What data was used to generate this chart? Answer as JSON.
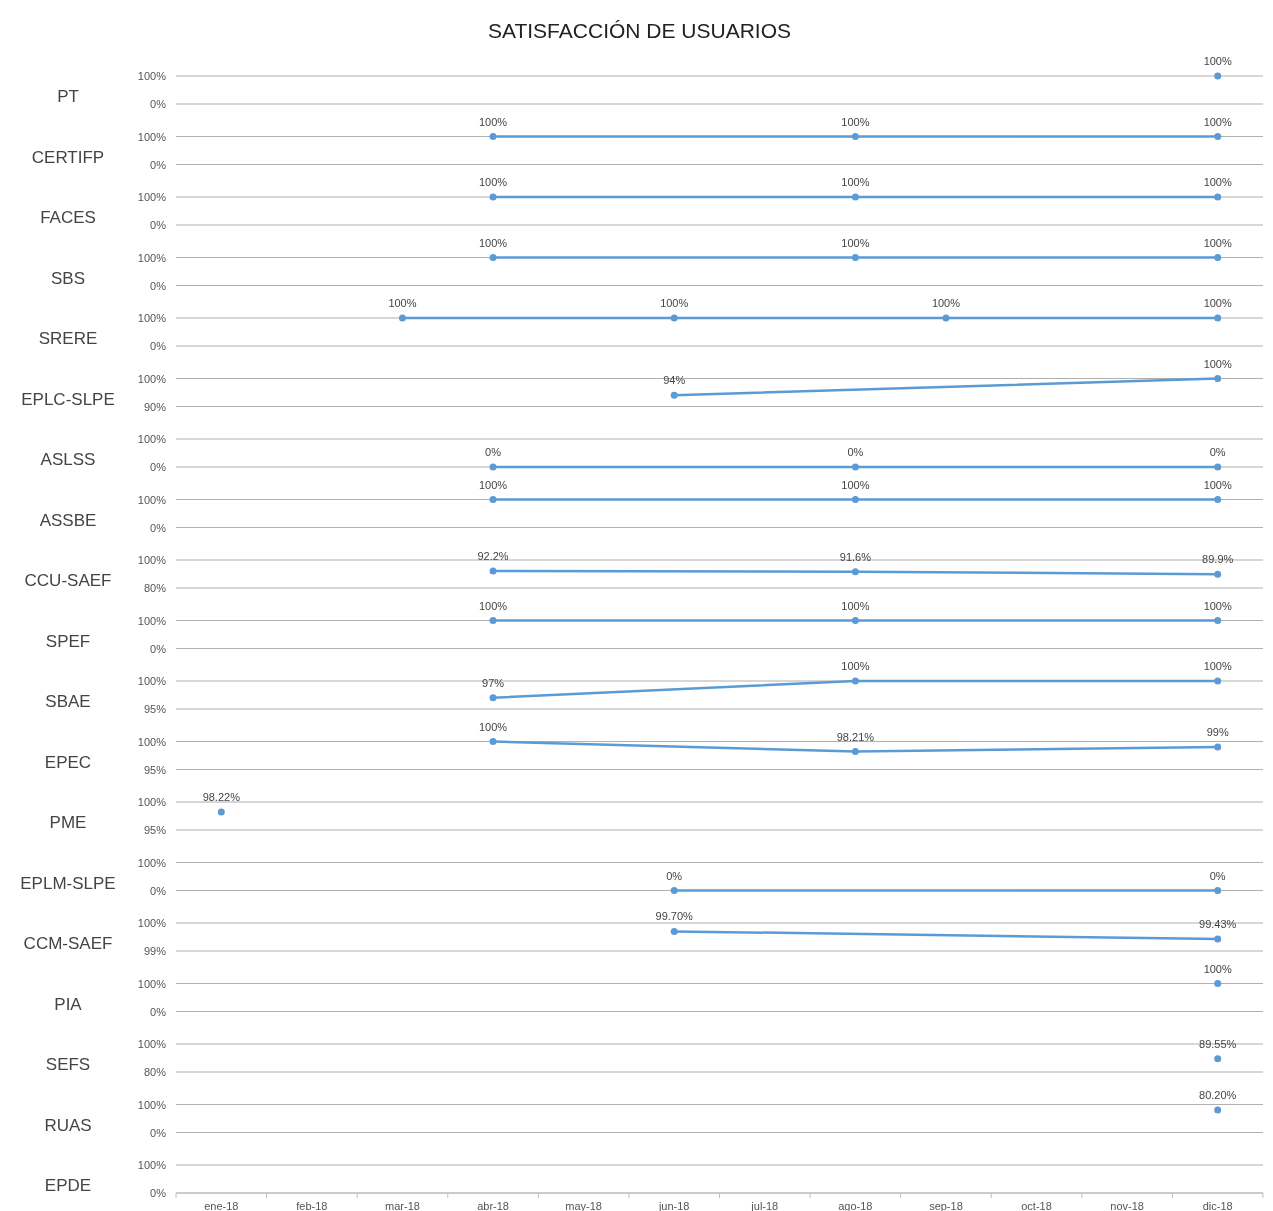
{
  "chart_data": [
    {
      "type": "line",
      "title": "SATISFACCIÓN DE USUARIOS",
      "ylabel": "PT",
      "categories": [
        null,
        null,
        null,
        null,
        null,
        null,
        null,
        null,
        null,
        null,
        null,
        null
      ],
      "values": [
        null,
        null,
        null,
        null,
        null,
        null,
        null,
        null,
        null,
        null,
        null,
        100
      ],
      "value_labels": [
        null,
        null,
        null,
        null,
        null,
        null,
        null,
        null,
        null,
        null,
        null,
        "100%"
      ],
      "color": "#5b9bd5",
      "ylim": [
        0,
        100
      ],
      "yticks": [
        {
          "value": 0,
          "label": "0%"
        },
        {
          "value": 100,
          "label": "100%"
        }
      ],
      "grid": "y",
      "marker": "circle",
      "tick_labels": "y"
    },
    {
      "type": "line",
      "ylabel": "CERTIFP",
      "categories": [
        null,
        null,
        null,
        null,
        null,
        null,
        null,
        null,
        null,
        null,
        null,
        null
      ],
      "values": [
        null,
        null,
        null,
        100,
        null,
        null,
        null,
        100,
        null,
        null,
        null,
        100
      ],
      "value_labels": [
        null,
        null,
        null,
        "100%",
        null,
        null,
        null,
        "100%",
        null,
        null,
        null,
        "100%"
      ],
      "color": "#5b9bd5",
      "ylim": [
        0,
        100
      ],
      "yticks": [
        {
          "value": 0,
          "label": "0%"
        },
        {
          "value": 100,
          "label": "100%"
        }
      ],
      "grid": "y",
      "marker": "circle",
      "tick_labels": "y"
    },
    {
      "type": "line",
      "ylabel": "FACES",
      "categories": [
        null,
        null,
        null,
        null,
        null,
        null,
        null,
        null,
        null,
        null,
        null,
        null
      ],
      "values": [
        null,
        null,
        null,
        100,
        null,
        null,
        null,
        100,
        null,
        null,
        null,
        100
      ],
      "value_labels": [
        null,
        null,
        null,
        "100%",
        null,
        null,
        null,
        "100%",
        null,
        null,
        null,
        "100%"
      ],
      "color": "#5b9bd5",
      "ylim": [
        0,
        100
      ],
      "yticks": [
        {
          "value": 0,
          "label": "0%"
        },
        {
          "value": 100,
          "label": "100%"
        }
      ],
      "grid": "y",
      "marker": "circle",
      "tick_labels": "y"
    },
    {
      "type": "line",
      "ylabel": "SBS",
      "categories": [
        null,
        null,
        null,
        null,
        null,
        null,
        null,
        null,
        null,
        null,
        null,
        null
      ],
      "values": [
        null,
        null,
        null,
        100,
        null,
        null,
        null,
        100,
        null,
        null,
        null,
        100
      ],
      "value_labels": [
        null,
        null,
        null,
        "100%",
        null,
        null,
        null,
        "100%",
        null,
        null,
        null,
        "100%"
      ],
      "color": "#5b9bd5",
      "ylim": [
        0,
        100
      ],
      "yticks": [
        {
          "value": 0,
          "label": "0%"
        },
        {
          "value": 100,
          "label": "100%"
        }
      ],
      "grid": "y",
      "marker": "circle",
      "tick_labels": "y"
    },
    {
      "type": "line",
      "ylabel": "SRERE",
      "categories": [
        null,
        null,
        null,
        null,
        null,
        null,
        null,
        null,
        null,
        null,
        null,
        null
      ],
      "values": [
        null,
        null,
        100,
        null,
        null,
        100,
        null,
        null,
        100,
        null,
        null,
        100
      ],
      "value_labels": [
        null,
        null,
        "100%",
        null,
        null,
        "100%",
        null,
        null,
        "100%",
        null,
        null,
        "100%"
      ],
      "color": "#5b9bd5",
      "ylim": [
        0,
        100
      ],
      "yticks": [
        {
          "value": 0,
          "label": "0%"
        },
        {
          "value": 100,
          "label": "100%"
        }
      ],
      "grid": "y",
      "marker": "circle",
      "tick_labels": "y"
    },
    {
      "type": "line",
      "ylabel": "EPLC-SLPE",
      "categories": [
        null,
        null,
        null,
        null,
        null,
        null,
        null,
        null,
        null,
        null,
        null,
        null
      ],
      "values": [
        null,
        null,
        null,
        null,
        null,
        94,
        null,
        null,
        null,
        null,
        null,
        100
      ],
      "value_labels": [
        null,
        null,
        null,
        null,
        null,
        "94%",
        null,
        null,
        null,
        null,
        null,
        "100%"
      ],
      "color": "#5b9bd5",
      "ylim": [
        90,
        100
      ],
      "yticks": [
        {
          "value": 90,
          "label": "90%"
        },
        {
          "value": 100,
          "label": "100%"
        }
      ],
      "grid": "y",
      "marker": "circle",
      "tick_labels": "y"
    },
    {
      "type": "line",
      "ylabel": "ASLSS",
      "categories": [
        null,
        null,
        null,
        null,
        null,
        null,
        null,
        null,
        null,
        null,
        null,
        null
      ],
      "values": [
        null,
        null,
        null,
        0,
        null,
        null,
        null,
        0,
        null,
        null,
        null,
        0
      ],
      "value_labels": [
        null,
        null,
        null,
        "0%",
        null,
        null,
        null,
        "0%",
        null,
        null,
        null,
        "0%"
      ],
      "color": "#5b9bd5",
      "ylim": [
        0,
        100
      ],
      "yticks": [
        {
          "value": 0,
          "label": "0%"
        },
        {
          "value": 100,
          "label": "100%"
        }
      ],
      "grid": "y",
      "marker": "circle",
      "tick_labels": "y"
    },
    {
      "type": "line",
      "ylabel": "ASSBE",
      "categories": [
        null,
        null,
        null,
        null,
        null,
        null,
        null,
        null,
        null,
        null,
        null,
        null
      ],
      "values": [
        null,
        null,
        null,
        100,
        null,
        null,
        null,
        100,
        null,
        null,
        null,
        100
      ],
      "value_labels": [
        null,
        null,
        null,
        "100%",
        null,
        null,
        null,
        "100%",
        null,
        null,
        null,
        "100%"
      ],
      "color": "#5b9bd5",
      "ylim": [
        0,
        100
      ],
      "yticks": [
        {
          "value": 0,
          "label": "0%"
        },
        {
          "value": 100,
          "label": "100%"
        }
      ],
      "grid": "y",
      "marker": "circle",
      "tick_labels": "y"
    },
    {
      "type": "line",
      "ylabel": "CCU-SAEF",
      "categories": [
        null,
        null,
        null,
        null,
        null,
        null,
        null,
        null,
        null,
        null,
        null,
        null
      ],
      "values": [
        null,
        null,
        null,
        92.2,
        null,
        null,
        null,
        91.6,
        null,
        null,
        null,
        89.9
      ],
      "value_labels": [
        null,
        null,
        null,
        "92.2%",
        null,
        null,
        null,
        "91.6%",
        null,
        null,
        null,
        "89.9%"
      ],
      "color": "#5b9bd5",
      "ylim": [
        80,
        100
      ],
      "yticks": [
        {
          "value": 80,
          "label": "80%"
        },
        {
          "value": 100,
          "label": "100%"
        }
      ],
      "grid": "y",
      "marker": "circle",
      "tick_labels": "y"
    },
    {
      "type": "line",
      "ylabel": "SPEF",
      "categories": [
        null,
        null,
        null,
        null,
        null,
        null,
        null,
        null,
        null,
        null,
        null,
        null
      ],
      "values": [
        null,
        null,
        null,
        100,
        null,
        null,
        null,
        100,
        null,
        null,
        null,
        100
      ],
      "value_labels": [
        null,
        null,
        null,
        "100%",
        null,
        null,
        null,
        "100%",
        null,
        null,
        null,
        "100%"
      ],
      "color": "#5b9bd5",
      "ylim": [
        0,
        100
      ],
      "yticks": [
        {
          "value": 0,
          "label": "0%"
        },
        {
          "value": 100,
          "label": "100%"
        }
      ],
      "grid": "y",
      "marker": "circle",
      "tick_labels": "y"
    },
    {
      "type": "line",
      "ylabel": "SBAE",
      "categories": [
        null,
        null,
        null,
        null,
        null,
        null,
        null,
        null,
        null,
        null,
        null,
        null
      ],
      "values": [
        null,
        null,
        null,
        97,
        null,
        null,
        null,
        100,
        null,
        null,
        null,
        100
      ],
      "value_labels": [
        null,
        null,
        null,
        "97%",
        null,
        null,
        null,
        "100%",
        null,
        null,
        null,
        "100%"
      ],
      "color": "#5b9bd5",
      "ylim": [
        95,
        100
      ],
      "yticks": [
        {
          "value": 95,
          "label": "95%"
        },
        {
          "value": 100,
          "label": "100%"
        }
      ],
      "grid": "y",
      "marker": "circle",
      "tick_labels": "y"
    },
    {
      "type": "line",
      "ylabel": "EPEC",
      "categories": [
        null,
        null,
        null,
        null,
        null,
        null,
        null,
        null,
        null,
        null,
        null,
        null
      ],
      "values": [
        null,
        null,
        null,
        100,
        null,
        null,
        null,
        98.21,
        null,
        null,
        null,
        99
      ],
      "value_labels": [
        null,
        null,
        null,
        "100%",
        null,
        null,
        null,
        "98.21%",
        null,
        null,
        null,
        "99%"
      ],
      "color": "#5b9bd5",
      "ylim": [
        95,
        100
      ],
      "yticks": [
        {
          "value": 95,
          "label": "95%"
        },
        {
          "value": 100,
          "label": "100%"
        }
      ],
      "grid": "y",
      "marker": "circle",
      "tick_labels": "y"
    },
    {
      "type": "line",
      "ylabel": "PME",
      "categories": [
        null,
        null,
        null,
        null,
        null,
        null,
        null,
        null,
        null,
        null,
        null,
        null
      ],
      "values": [
        98.22,
        null,
        null,
        null,
        null,
        null,
        null,
        null,
        null,
        null,
        null,
        null
      ],
      "value_labels": [
        "98.22%",
        null,
        null,
        null,
        null,
        null,
        null,
        null,
        null,
        null,
        null,
        null
      ],
      "color": "#5b9bd5",
      "ylim": [
        95,
        100
      ],
      "yticks": [
        {
          "value": 95,
          "label": "95%"
        },
        {
          "value": 100,
          "label": "100%"
        }
      ],
      "grid": "y",
      "marker": "circle",
      "tick_labels": "y"
    },
    {
      "type": "line",
      "ylabel": "EPLM-SLPE",
      "categories": [
        null,
        null,
        null,
        null,
        null,
        null,
        null,
        null,
        null,
        null,
        null,
        null
      ],
      "values": [
        null,
        null,
        null,
        null,
        null,
        0,
        null,
        null,
        null,
        null,
        null,
        0
      ],
      "value_labels": [
        null,
        null,
        null,
        null,
        null,
        "0%",
        null,
        null,
        null,
        null,
        null,
        "0%"
      ],
      "color": "#5b9bd5",
      "ylim": [
        0,
        100
      ],
      "yticks": [
        {
          "value": 0,
          "label": "0%"
        },
        {
          "value": 100,
          "label": "100%"
        }
      ],
      "grid": "y",
      "marker": "circle",
      "tick_labels": "y"
    },
    {
      "type": "line",
      "ylabel": "CCM-SAEF",
      "categories": [
        null,
        null,
        null,
        null,
        null,
        null,
        null,
        null,
        null,
        null,
        null,
        null
      ],
      "values": [
        null,
        null,
        null,
        null,
        null,
        99.7,
        null,
        null,
        null,
        null,
        null,
        99.43
      ],
      "value_labels": [
        null,
        null,
        null,
        null,
        null,
        "99.70%",
        null,
        null,
        null,
        null,
        null,
        "99.43%"
      ],
      "color": "#5b9bd5",
      "ylim": [
        99,
        100
      ],
      "yticks": [
        {
          "value": 99,
          "label": "99%"
        },
        {
          "value": 100,
          "label": "100%"
        }
      ],
      "grid": "y",
      "marker": "circle",
      "tick_labels": "y"
    },
    {
      "type": "line",
      "ylabel": "PIA",
      "categories": [
        null,
        null,
        null,
        null,
        null,
        null,
        null,
        null,
        null,
        null,
        null,
        null
      ],
      "values": [
        null,
        null,
        null,
        null,
        null,
        null,
        null,
        null,
        null,
        null,
        null,
        100
      ],
      "value_labels": [
        null,
        null,
        null,
        null,
        null,
        null,
        null,
        null,
        null,
        null,
        null,
        "100%"
      ],
      "color": "#5b9bd5",
      "ylim": [
        0,
        100
      ],
      "yticks": [
        {
          "value": 0,
          "label": "0%"
        },
        {
          "value": 100,
          "label": "100%"
        }
      ],
      "grid": "y",
      "marker": "circle",
      "tick_labels": "y"
    },
    {
      "type": "line",
      "ylabel": "SEFS",
      "categories": [
        null,
        null,
        null,
        null,
        null,
        null,
        null,
        null,
        null,
        null,
        null,
        null
      ],
      "values": [
        null,
        null,
        null,
        null,
        null,
        null,
        null,
        null,
        null,
        null,
        null,
        89.55
      ],
      "value_labels": [
        null,
        null,
        null,
        null,
        null,
        null,
        null,
        null,
        null,
        null,
        null,
        "89.55%"
      ],
      "color": "#5b9bd5",
      "ylim": [
        80,
        100
      ],
      "yticks": [
        {
          "value": 80,
          "label": "80%"
        },
        {
          "value": 100,
          "label": "100%"
        }
      ],
      "grid": "y",
      "marker": "circle",
      "tick_labels": "y"
    },
    {
      "type": "line",
      "ylabel": "RUAS",
      "categories": [
        null,
        null,
        null,
        null,
        null,
        null,
        null,
        null,
        null,
        null,
        null,
        null
      ],
      "values": [
        null,
        null,
        null,
        null,
        null,
        null,
        null,
        null,
        null,
        null,
        null,
        80.2
      ],
      "value_labels": [
        null,
        null,
        null,
        null,
        null,
        null,
        null,
        null,
        null,
        null,
        null,
        "80.20%"
      ],
      "color": "#5b9bd5",
      "ylim": [
        0,
        100
      ],
      "yticks": [
        {
          "value": 0,
          "label": "0%"
        },
        {
          "value": 100,
          "label": "100%"
        }
      ],
      "grid": "y",
      "marker": "circle",
      "tick_labels": "y"
    },
    {
      "type": "line",
      "ylabel": "EPDE",
      "categories": [
        "ene-18",
        "feb-18",
        "mar-18",
        "abr-18",
        "may-18",
        "jun-18",
        "jul-18",
        "ago-18",
        "sep-18",
        "oct-18",
        "nov-18",
        "dic-18"
      ],
      "values": [
        null,
        null,
        null,
        null,
        null,
        null,
        null,
        null,
        null,
        null,
        null,
        null
      ],
      "ylim": [
        0,
        100
      ],
      "yticks": [
        {
          "value": 0,
          "label": "0%"
        },
        {
          "value": 100,
          "label": "100%"
        }
      ],
      "grid": "y",
      "marker": "circle"
    }
  ]
}
